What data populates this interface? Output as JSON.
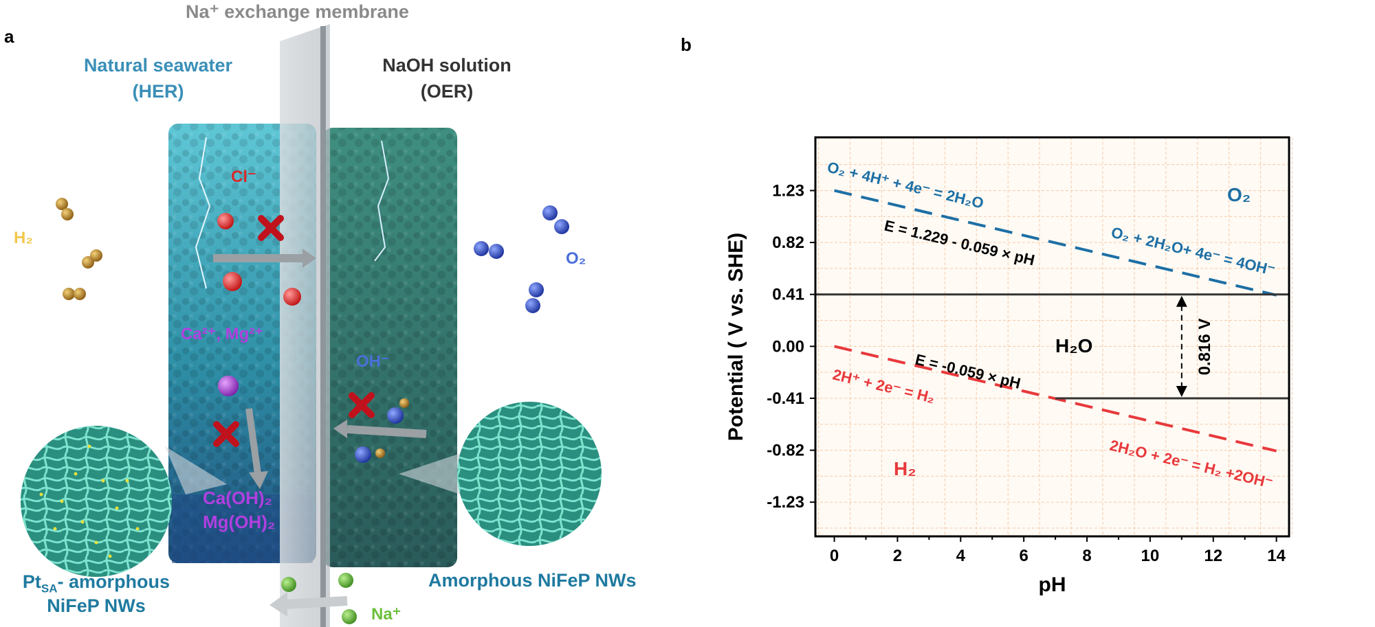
{
  "panel_a": {
    "letter": "a",
    "membrane_label": "Na⁺ exchange membrane",
    "left_compartment": {
      "title": "Natural seawater",
      "subtitle": "(HER)"
    },
    "right_compartment": {
      "title": "NaOH solution",
      "subtitle": "(OER)"
    },
    "species": {
      "h2": "H₂",
      "o2": "O₂",
      "cl": "Cl⁻",
      "ca_mg": "Ca²⁺, Mg²⁺",
      "oh": "OH⁻",
      "precip_1": "Ca(OH)₂",
      "precip_2": "Mg(OH)₂",
      "na": "Na⁺"
    },
    "catalyst_left": {
      "line1": "Pt",
      "line1_sub": "SA",
      "line1_rest": "- amorphous",
      "line2": "NiFeP NWs"
    },
    "catalyst_right": "Amorphous NiFeP NWs",
    "colors": {
      "seawater": "#3a8fb7",
      "naoh": "#333333",
      "membrane": "#8a8a8a",
      "cl": "#d62b2b",
      "ca_mg": "#b040e0",
      "oh": "#4a6fd8",
      "na": "#6cbf3a",
      "h2": "#f2c84b",
      "o2": "#4a6fd8",
      "catalyst_text": "#1f7aa0",
      "cross": "#c0121c"
    }
  },
  "chart_data": {
    "panel_letter": "b",
    "type": "line",
    "xlabel": "pH",
    "ylabel": "Potential ( V vs. SHE)",
    "xlim": [
      -0.6,
      14.4
    ],
    "ylim": [
      -1.5,
      1.65
    ],
    "xticks": [
      0,
      2,
      4,
      6,
      8,
      10,
      12,
      14
    ],
    "yticks": [
      1.23,
      0.82,
      0.41,
      0.0,
      -0.41,
      -0.82,
      -1.23
    ],
    "ytick_labels": [
      "1.23",
      "0.82",
      "0.41",
      "0.00",
      "-0.41",
      "-0.82",
      "-1.23"
    ],
    "grid": true,
    "series": [
      {
        "style": "dashed",
        "color": "#1d6fa5",
        "x": [
          0,
          14
        ],
        "y": [
          1.23,
          0.404
        ]
      },
      {
        "style": "dashed",
        "color": "#e8393c",
        "x": [
          0,
          14
        ],
        "y": [
          0.0,
          -0.826
        ]
      },
      {
        "style": "solid",
        "color": "#333333",
        "x": [
          -0.6,
          14.4
        ],
        "y": [
          0.41,
          0.41
        ]
      },
      {
        "style": "solid",
        "color": "#333333",
        "x": [
          7.0,
          14.4
        ],
        "y": [
          -0.41,
          -0.41
        ]
      }
    ],
    "annotations": {
      "o2_region": "O₂",
      "h2_region": "H₂",
      "h2o_region": "H₂O",
      "oer_acid": "O₂ + 4H⁺ + 4e⁻ = 2H₂O",
      "oer_base": "O₂ + 2H₂O+ 4e⁻ = 4OH⁻",
      "oer_eq": "E = 1.229 - 0.059 × pH",
      "her_eq": "E = -0.059 × pH",
      "her_acid": "2H⁺ + 2e⁻ = H₂",
      "her_base": "2H₂O + 2e⁻ = H₂ +2OH⁻",
      "voltage_gap": "0.816 V"
    }
  }
}
